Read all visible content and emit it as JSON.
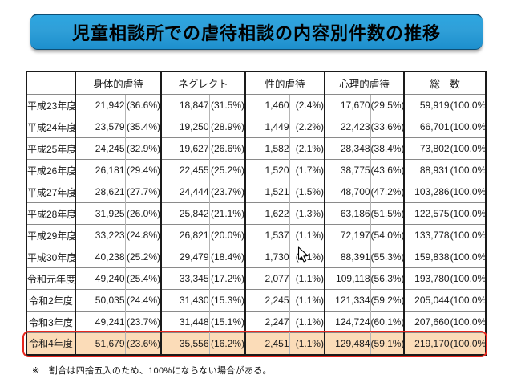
{
  "title": "児童相談所での虐待相談の内容別件数の推移",
  "table": {
    "year_header": "",
    "columns": [
      "身体的虐待",
      "ネグレクト",
      "性的虐待",
      "心理的虐待",
      "総　数"
    ],
    "rows": [
      {
        "year": "平成23年度",
        "values": [
          [
            "21,942",
            "(36.6%)"
          ],
          [
            "18,847",
            "(31.5%)"
          ],
          [
            "1,460",
            "(2.4%)"
          ],
          [
            "17,670",
            "(29.5%)"
          ],
          [
            "59,919",
            "(100.0%)"
          ]
        ],
        "highlight": false
      },
      {
        "year": "平成24年度",
        "values": [
          [
            "23,579",
            "(35.4%)"
          ],
          [
            "19,250",
            "(28.9%)"
          ],
          [
            "1,449",
            "(2.2%)"
          ],
          [
            "22,423",
            "(33.6%)"
          ],
          [
            "66,701",
            "(100.0%)"
          ]
        ],
        "highlight": false
      },
      {
        "year": "平成25年度",
        "values": [
          [
            "24,245",
            "(32.9%)"
          ],
          [
            "19,627",
            "(26.6%)"
          ],
          [
            "1,582",
            "(2.1%)"
          ],
          [
            "28,348",
            "(38.4%)"
          ],
          [
            "73,802",
            "(100.0%)"
          ]
        ],
        "highlight": false
      },
      {
        "year": "平成26年度",
        "values": [
          [
            "26,181",
            "(29.4%)"
          ],
          [
            "22,455",
            "(25.2%)"
          ],
          [
            "1,520",
            "(1.7%)"
          ],
          [
            "38,775",
            "(43.6%)"
          ],
          [
            "88,931",
            "(100.0%)"
          ]
        ],
        "highlight": false
      },
      {
        "year": "平成27年度",
        "values": [
          [
            "28,621",
            "(27.7%)"
          ],
          [
            "24,444",
            "(23.7%)"
          ],
          [
            "1,521",
            "(1.5%)"
          ],
          [
            "48,700",
            "(47.2%)"
          ],
          [
            "103,286",
            "(100.0%)"
          ]
        ],
        "highlight": false
      },
      {
        "year": "平成28年度",
        "values": [
          [
            "31,925",
            "(26.0%)"
          ],
          [
            "25,842",
            "(21.1%)"
          ],
          [
            "1,622",
            "(1.3%)"
          ],
          [
            "63,186",
            "(51.5%)"
          ],
          [
            "122,575",
            "(100.0%)"
          ]
        ],
        "highlight": false
      },
      {
        "year": "平成29年度",
        "values": [
          [
            "33,223",
            "(24.8%)"
          ],
          [
            "26,821",
            "(20.0%)"
          ],
          [
            "1,537",
            "(1.1%)"
          ],
          [
            "72,197",
            "(54.0%)"
          ],
          [
            "133,778",
            "(100.0%)"
          ]
        ],
        "highlight": false
      },
      {
        "year": "平成30年度",
        "values": [
          [
            "40,238",
            "(25.2%)"
          ],
          [
            "29,479",
            "(18.4%)"
          ],
          [
            "1,730",
            "(1.1%)"
          ],
          [
            "88,391",
            "(55.3%)"
          ],
          [
            "159,838",
            "(100.0%)"
          ]
        ],
        "highlight": false
      },
      {
        "year": "令和元年度",
        "values": [
          [
            "49,240",
            "(25.4%)"
          ],
          [
            "33,345",
            "(17.2%)"
          ],
          [
            "2,077",
            "(1.1%)"
          ],
          [
            "109,118",
            "(56.3%)"
          ],
          [
            "193,780",
            "(100.0%)"
          ]
        ],
        "highlight": false
      },
      {
        "year": "令和2年度",
        "values": [
          [
            "50,035",
            "(24.4%)"
          ],
          [
            "31,430",
            "(15.3%)"
          ],
          [
            "2,245",
            "(1.1%)"
          ],
          [
            "121,334",
            "(59.2%)"
          ],
          [
            "205,044",
            "(100.0%)"
          ]
        ],
        "highlight": false
      },
      {
        "year": "令和3年度",
        "values": [
          [
            "49,241",
            "(23.7%)"
          ],
          [
            "31,448",
            "(15.1%)"
          ],
          [
            "2,247",
            "(1.1%)"
          ],
          [
            "124,724",
            "(60.1%)"
          ],
          [
            "207,660",
            "(100.0%)"
          ]
        ],
        "highlight": false
      },
      {
        "year": "令和4年度",
        "values": [
          [
            "51,679",
            "(23.6%)"
          ],
          [
            "35,556",
            "(16.2%)"
          ],
          [
            "2,451",
            "(1.1%)"
          ],
          [
            "129,484",
            "(59.1%)"
          ],
          [
            "219,170",
            "(100.0%)"
          ]
        ],
        "highlight": true
      }
    ]
  },
  "footnote": "※　割合は四捨五入のため、100%にならない場合がある。",
  "cursor": "arrow-cursor",
  "colors": {
    "banner_top": "#2ea6e0",
    "banner_mid": "#2f9fd8",
    "banner_bottom": "#1d8fcd",
    "banner_border": "#0e4e74",
    "highlight_bg": "#fbdcb8",
    "highlight_border": "#e8281e",
    "table_border": "#1a1a1a",
    "row_line": "#8a8a8a",
    "sub_line": "#b4b4b4"
  }
}
